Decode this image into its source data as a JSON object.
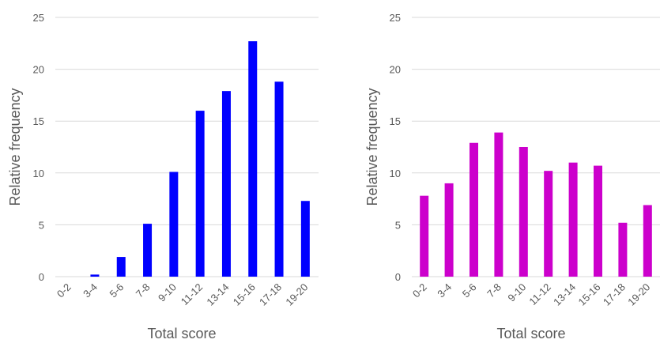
{
  "chart_data": [
    {
      "type": "bar",
      "categories": [
        "0-2",
        "3-4",
        "5-6",
        "7-8",
        "9-10",
        "11-12",
        "13-14",
        "15-16",
        "17-18",
        "19-20"
      ],
      "values": [
        0,
        0.2,
        1.9,
        5.1,
        10.1,
        16.0,
        17.9,
        22.7,
        18.8,
        7.3
      ],
      "color": "#0000ff",
      "xlabel": "Total score",
      "ylabel": "Relative frequency",
      "ylim": [
        0,
        25
      ],
      "yticks": [
        0,
        5,
        10,
        15,
        20,
        25
      ],
      "grid": true,
      "legend": "none"
    },
    {
      "type": "bar",
      "categories": [
        "0-2",
        "3-4",
        "5-6",
        "7-8",
        "9-10",
        "11-12",
        "13-14",
        "15-16",
        "17-18",
        "19-20"
      ],
      "values": [
        7.8,
        9.0,
        12.9,
        13.9,
        12.5,
        10.2,
        11.0,
        10.7,
        5.2,
        6.9
      ],
      "color": "#cc00cc",
      "xlabel": "Total score",
      "ylabel": "Relative frequency",
      "ylim": [
        0,
        25
      ],
      "yticks": [
        0,
        5,
        10,
        15,
        20,
        25
      ],
      "grid": true,
      "legend": "none"
    }
  ]
}
